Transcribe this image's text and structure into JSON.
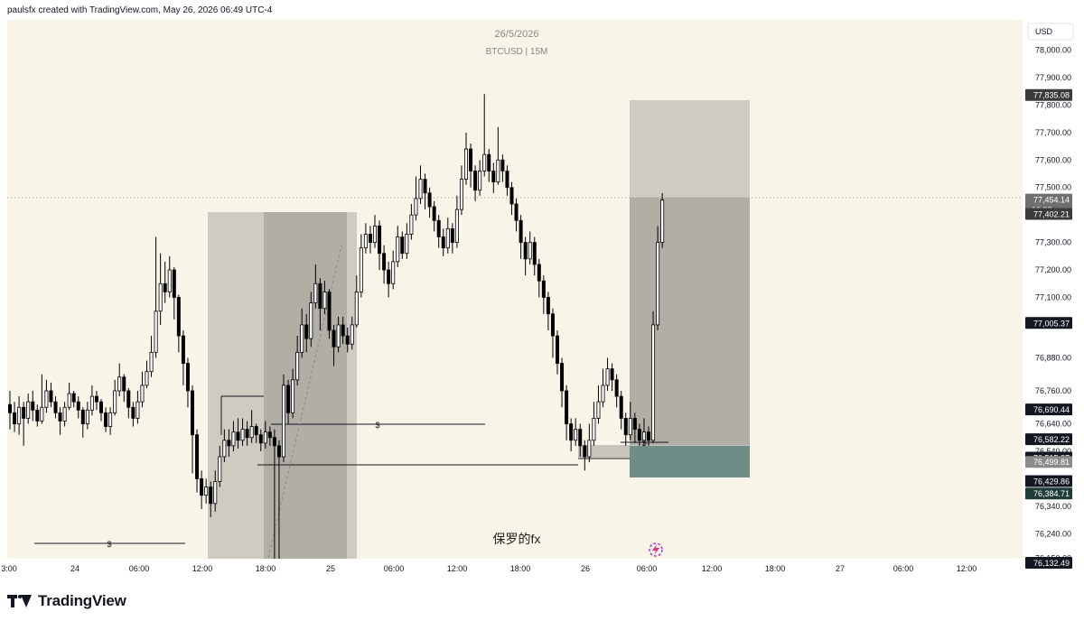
{
  "header": {
    "credit": "paulsfx created with TradingView.com, May 26, 2026 06:49 UTC-4"
  },
  "chart_header": {
    "date": "26/5/2026",
    "symbol": "BTCUSD | 15M"
  },
  "watermark": "保罗的fx",
  "footer": {
    "brand": "TradingView"
  },
  "colors": {
    "chart_bg": "#f8f4e8",
    "candle": "#000000",
    "zone_light": "#cfcbc2",
    "zone_dark": "#b1aea5",
    "risk_zone": "#6f8c87",
    "price_label_bg": "#131722"
  },
  "icons": [
    "tradingview-logo-icon",
    "lightning-replay-icon"
  ],
  "chart_data": {
    "type": "candlestick",
    "currency": "USD",
    "ylim": [
      76080,
      78110
    ],
    "y_ticks": [
      "78,000.00",
      "77,900.00",
      "77,800.00",
      "77,700.00",
      "77,600.00",
      "77,500.00",
      "77,300.00",
      "77,200.00",
      "77,100.00",
      "76,880.00",
      "76,760.00",
      "76,640.00",
      "76,540.00",
      "76,340.00",
      "76,240.00",
      "76,150.00"
    ],
    "x_ticks": [
      "3:00",
      "24",
      "06:00",
      "12:00",
      "18:00",
      "25",
      "06:00",
      "12:00",
      "18:00",
      "26",
      "06:00",
      "12:00",
      "18:00",
      "27",
      "06:00",
      "12:00"
    ],
    "price_labels": [
      {
        "value": "77,835.08",
        "style": "dark"
      },
      {
        "value": "77,454.14",
        "style": "current",
        "sub": "10:08"
      },
      {
        "value": "77,402.21",
        "style": "dark"
      },
      {
        "value": "77,005.37",
        "style": "black"
      },
      {
        "value": "76,690.44",
        "style": "black"
      },
      {
        "value": "76,582.22",
        "style": "black"
      },
      {
        "value": "76,515.37",
        "style": "black"
      },
      {
        "value": "76,499.81",
        "style": "grey"
      },
      {
        "value": "76,429.86",
        "style": "black"
      },
      {
        "value": "76,384.71",
        "style": "green"
      },
      {
        "value": "76,132.49",
        "style": "black"
      }
    ],
    "current_price": 77454.14,
    "liquidity_marker": "$",
    "candles": [
      [
        76710,
        76680,
        76760,
        76620
      ],
      [
        76680,
        76640,
        76720,
        76610
      ],
      [
        76640,
        76700,
        76740,
        76600
      ],
      [
        76700,
        76660,
        76720,
        76560
      ],
      [
        76660,
        76720,
        76750,
        76640
      ],
      [
        76720,
        76690,
        76760,
        76650
      ],
      [
        76690,
        76650,
        76710,
        76630
      ],
      [
        76650,
        76700,
        76820,
        76640
      ],
      [
        76700,
        76760,
        76800,
        76680
      ],
      [
        76760,
        76720,
        76790,
        76700
      ],
      [
        76720,
        76680,
        76740,
        76660
      ],
      [
        76680,
        76650,
        76700,
        76600
      ],
      [
        76650,
        76700,
        76720,
        76630
      ],
      [
        76700,
        76750,
        76790,
        76690
      ],
      [
        76750,
        76720,
        76760,
        76700
      ],
      [
        76720,
        76690,
        76740,
        76660
      ],
      [
        76690,
        76640,
        76700,
        76590
      ],
      [
        76640,
        76690,
        76720,
        76620
      ],
      [
        76690,
        76740,
        76780,
        76670
      ],
      [
        76740,
        76720,
        76760,
        76690
      ],
      [
        76720,
        76680,
        76730,
        76650
      ],
      [
        76680,
        76630,
        76700,
        76610
      ],
      [
        76630,
        76680,
        76700,
        76600
      ],
      [
        76680,
        76760,
        76800,
        76670
      ],
      [
        76760,
        76810,
        76860,
        76740
      ],
      [
        76810,
        76760,
        76820,
        76720
      ],
      [
        76760,
        76700,
        76770,
        76660
      ],
      [
        76700,
        76660,
        76720,
        76630
      ],
      [
        76660,
        76720,
        76760,
        76640
      ],
      [
        76720,
        76780,
        76830,
        76700
      ],
      [
        76780,
        76830,
        76870,
        76770
      ],
      [
        76830,
        76900,
        76960,
        76810
      ],
      [
        76900,
        77050,
        77320,
        76880
      ],
      [
        77050,
        77150,
        77260,
        77000
      ],
      [
        77150,
        77120,
        77230,
        77080
      ],
      [
        77120,
        77200,
        77250,
        77100
      ],
      [
        77200,
        77100,
        77210,
        77020
      ],
      [
        77100,
        76960,
        77110,
        76900
      ],
      [
        76960,
        76860,
        76980,
        76780
      ],
      [
        76860,
        76760,
        76880,
        76700
      ],
      [
        76760,
        76600,
        76780,
        76460
      ],
      [
        76600,
        76440,
        76620,
        76390
      ],
      [
        76440,
        76380,
        76470,
        76330
      ],
      [
        76380,
        76410,
        76440,
        76350
      ],
      [
        76410,
        76350,
        76430,
        76300
      ],
      [
        76350,
        76430,
        76470,
        76320
      ],
      [
        76430,
        76520,
        76560,
        76410
      ],
      [
        76520,
        76580,
        76620,
        76500
      ],
      [
        76580,
        76560,
        76620,
        76520
      ],
      [
        76560,
        76610,
        76650,
        76540
      ],
      [
        76610,
        76580,
        76660,
        76550
      ],
      [
        76580,
        76620,
        76660,
        76560
      ],
      [
        76620,
        76590,
        76650,
        76560
      ],
      [
        76590,
        76630,
        76690,
        76570
      ],
      [
        76630,
        76600,
        76640,
        76570
      ],
      [
        76600,
        76570,
        76620,
        76540
      ],
      [
        76570,
        76610,
        76650,
        76550
      ],
      [
        76610,
        76590,
        76630,
        76560
      ],
      [
        76590,
        76560,
        76620,
        76100
      ],
      [
        76560,
        76520,
        76580,
        76070
      ],
      [
        76520,
        76780,
        76820,
        76500
      ],
      [
        76780,
        76680,
        76800,
        76640
      ],
      [
        76680,
        76800,
        76840,
        76660
      ],
      [
        76800,
        76900,
        76960,
        76780
      ],
      [
        76900,
        77000,
        77060,
        76880
      ],
      [
        77000,
        76950,
        77040,
        76900
      ],
      [
        76950,
        77080,
        77120,
        76920
      ],
      [
        77080,
        77150,
        77220,
        77060
      ],
      [
        77150,
        77060,
        77170,
        76980
      ],
      [
        77060,
        77120,
        77160,
        77040
      ],
      [
        77120,
        76980,
        77130,
        76950
      ],
      [
        76980,
        76920,
        77000,
        76850
      ],
      [
        76920,
        77000,
        77030,
        76900
      ],
      [
        77000,
        76960,
        77030,
        76930
      ],
      [
        76960,
        76930,
        76990,
        76900
      ],
      [
        76930,
        77000,
        77030,
        76910
      ],
      [
        77000,
        77120,
        77180,
        76990
      ],
      [
        77120,
        77280,
        77330,
        77100
      ],
      [
        77280,
        77330,
        77370,
        77260
      ],
      [
        77330,
        77300,
        77360,
        77260
      ],
      [
        77300,
        77360,
        77400,
        77280
      ],
      [
        77360,
        77260,
        77380,
        77200
      ],
      [
        77260,
        77200,
        77290,
        77150
      ],
      [
        77200,
        77150,
        77230,
        77100
      ],
      [
        77150,
        77230,
        77270,
        77130
      ],
      [
        77230,
        77320,
        77360,
        77210
      ],
      [
        77320,
        77260,
        77340,
        77240
      ],
      [
        77260,
        77330,
        77370,
        77240
      ],
      [
        77330,
        77400,
        77440,
        77310
      ],
      [
        77400,
        77460,
        77540,
        77380
      ],
      [
        77460,
        77530,
        77580,
        77440
      ],
      [
        77530,
        77480,
        77550,
        77420
      ],
      [
        77480,
        77430,
        77500,
        77390
      ],
      [
        77430,
        77380,
        77450,
        77340
      ],
      [
        77380,
        77320,
        77400,
        77280
      ],
      [
        77320,
        77280,
        77350,
        77250
      ],
      [
        77280,
        77350,
        77390,
        77260
      ],
      [
        77350,
        77300,
        77370,
        77260
      ],
      [
        77300,
        77420,
        77470,
        77280
      ],
      [
        77420,
        77530,
        77580,
        77400
      ],
      [
        77530,
        77640,
        77700,
        77510
      ],
      [
        77640,
        77560,
        77660,
        77500
      ],
      [
        77560,
        77490,
        77580,
        77450
      ],
      [
        77490,
        77560,
        77600,
        77470
      ],
      [
        77560,
        77620,
        77840,
        77540
      ],
      [
        77620,
        77560,
        77640,
        77520
      ],
      [
        77560,
        77520,
        77590,
        77480
      ],
      [
        77520,
        77600,
        77720,
        77510
      ],
      [
        77600,
        77560,
        77620,
        77520
      ],
      [
        77560,
        77500,
        77580,
        77470
      ],
      [
        77500,
        77440,
        77520,
        77400
      ],
      [
        77440,
        77380,
        77460,
        77340
      ],
      [
        77380,
        77300,
        77400,
        77240
      ],
      [
        77300,
        77240,
        77320,
        77180
      ],
      [
        77240,
        77300,
        77340,
        77220
      ],
      [
        77300,
        77220,
        77320,
        77180
      ],
      [
        77220,
        77160,
        77240,
        77100
      ],
      [
        77160,
        77100,
        77180,
        77040
      ],
      [
        77100,
        77040,
        77120,
        76980
      ],
      [
        77040,
        76960,
        77060,
        76880
      ],
      [
        76960,
        76860,
        76980,
        76820
      ],
      [
        76860,
        76760,
        76880,
        76700
      ],
      [
        76760,
        76640,
        76780,
        76580
      ],
      [
        76640,
        76580,
        76660,
        76540
      ],
      [
        76580,
        76620,
        76660,
        76560
      ],
      [
        76620,
        76560,
        76640,
        76520
      ],
      [
        76560,
        76520,
        76580,
        76470
      ],
      [
        76520,
        76580,
        76640,
        76500
      ],
      [
        76580,
        76660,
        76720,
        76560
      ],
      [
        76660,
        76720,
        76780,
        76640
      ],
      [
        76720,
        76780,
        76840,
        76700
      ],
      [
        76780,
        76840,
        76880,
        76760
      ],
      [
        76840,
        76800,
        76860,
        76760
      ],
      [
        76800,
        76740,
        76820,
        76700
      ],
      [
        76740,
        76660,
        76760,
        76620
      ],
      [
        76660,
        76600,
        76680,
        76560
      ],
      [
        76600,
        76660,
        76720,
        76580
      ],
      [
        76660,
        76620,
        76680,
        76570
      ],
      [
        76620,
        76580,
        76640,
        76560
      ],
      [
        76580,
        76610,
        76660,
        76560
      ],
      [
        76610,
        76580,
        76630,
        76560
      ],
      [
        76580,
        77000,
        77050,
        76570
      ],
      [
        77000,
        77300,
        77360,
        76980
      ],
      [
        77300,
        77454,
        77480,
        77280
      ]
    ]
  }
}
